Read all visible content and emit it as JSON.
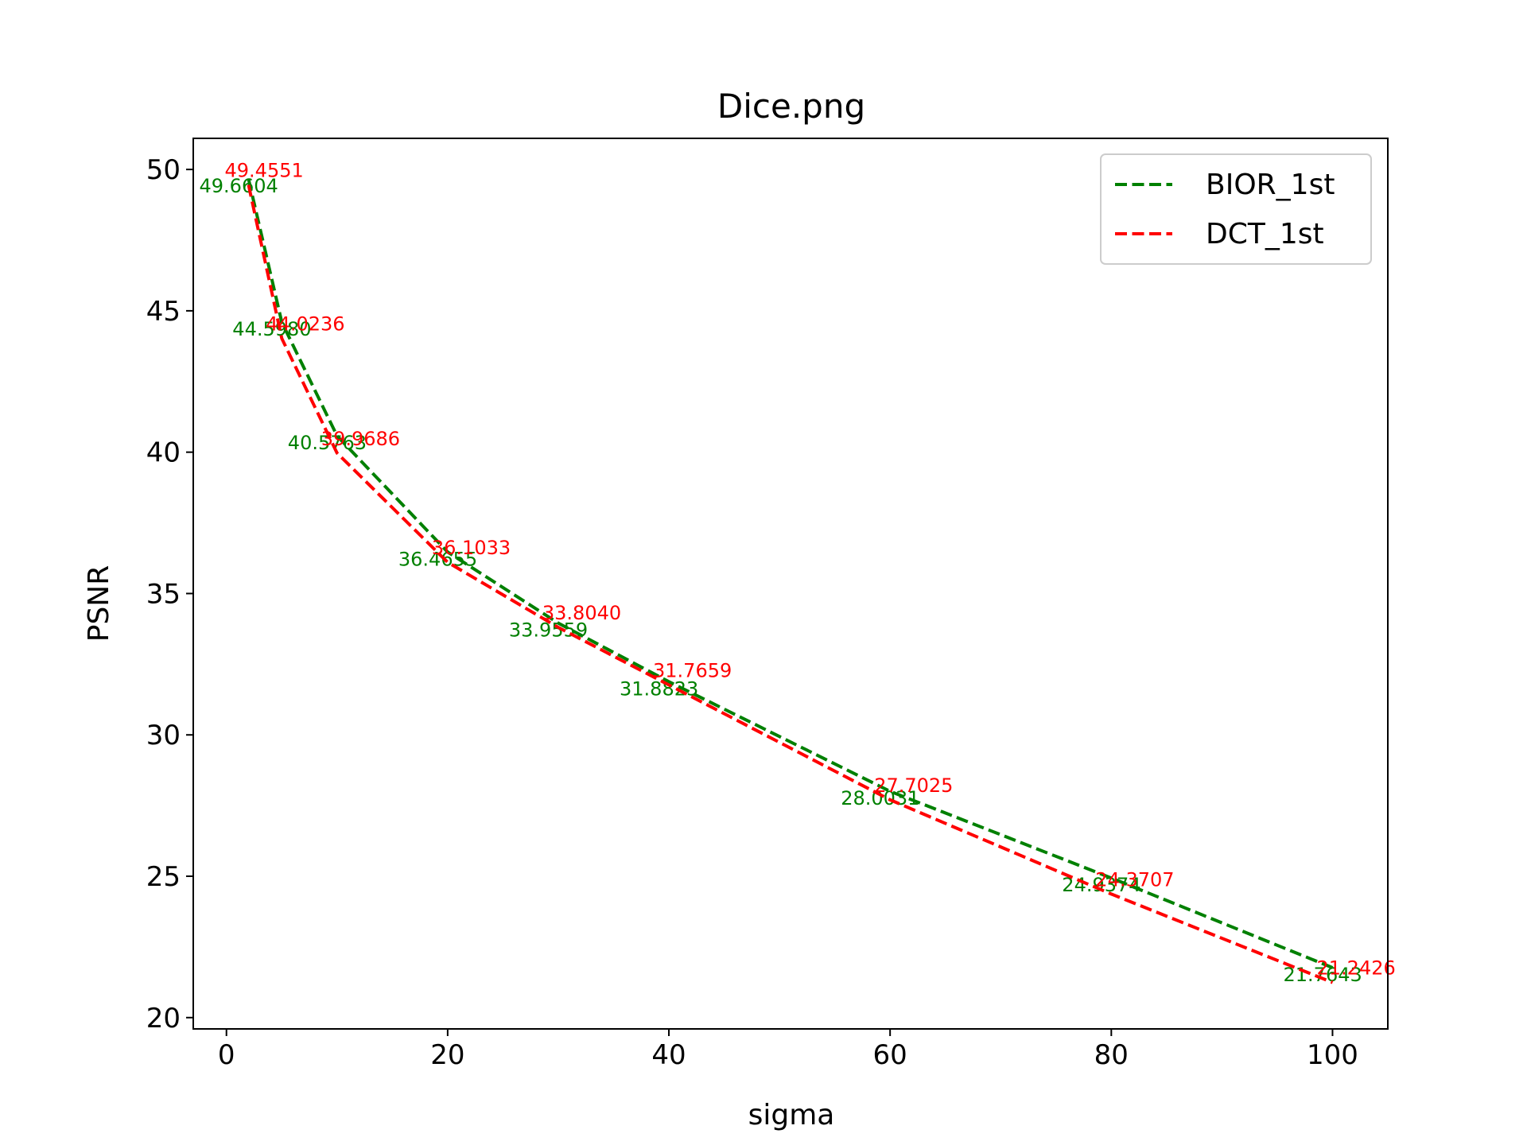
{
  "chart_data": {
    "type": "line",
    "title": "Dice.png",
    "xlabel": "sigma",
    "ylabel": "PSNR",
    "xlim": [
      -3,
      105
    ],
    "ylim": [
      19.6,
      51.1
    ],
    "xticks": [
      0,
      20,
      40,
      60,
      80,
      100
    ],
    "yticks": [
      20,
      25,
      30,
      35,
      40,
      45,
      50
    ],
    "grid": false,
    "legend_position": "upper-right",
    "x": [
      2,
      5,
      10,
      20,
      30,
      40,
      60,
      80,
      100
    ],
    "series": [
      {
        "name": "BIOR_1st",
        "color": "#008000",
        "style": "dashed",
        "values": [
          49.6604,
          44.598,
          40.5763,
          36.4655,
          33.9559,
          31.8823,
          28.0031,
          24.9374,
          21.7643
        ],
        "labels": [
          "49.6604",
          "44.5980",
          "40.5763",
          "36.4655",
          "33.9559",
          "31.8823",
          "28.0031",
          "24.9374",
          "21.7643"
        ]
      },
      {
        "name": "DCT_1st",
        "color": "#ff0000",
        "style": "dashed",
        "values": [
          49.4551,
          44.0236,
          39.9686,
          36.1033,
          33.804,
          31.7659,
          27.7025,
          24.3707,
          21.2426
        ],
        "labels": [
          "49.4551",
          "44.0236",
          "39.9686",
          "36.1033",
          "33.8040",
          "31.7659",
          "27.7025",
          "24.3707",
          "21.2426"
        ]
      }
    ]
  }
}
